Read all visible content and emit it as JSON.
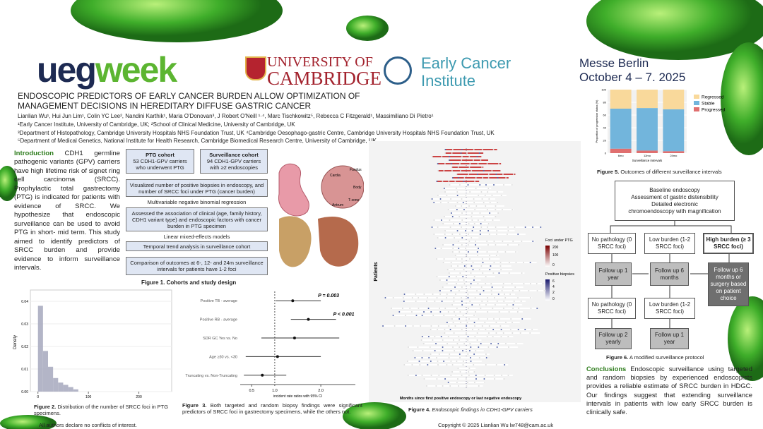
{
  "header": {
    "logo_left": "ueg",
    "logo_right": "week",
    "university_line1": "UNIVERSITY OF",
    "university_line2": "CAMBRIDGE",
    "institute_line1": "Early Cancer",
    "institute_line2": "Institute",
    "venue": "Messe Berlin",
    "dates": "October 4 – 7. 2025"
  },
  "title": "ENDOSCOPIC PREDICTORS OF EARLY CANCER BURDEN ALLOW OPTIMIZATION OF MANAGEMENT DECISIONS IN HEREDITARY DIFFUSE GASTRIC CANCER",
  "authors": "Lianlian Wu¹, Hui Jun Lim¹, Colin YC Lee², Nandini Karthik¹, Maria O'Donovan³, J Robert O'Neill ¹·⁴, Marc Tischkowitz⁵, Rebecca C Fitzgerald¹, Massimiliano Di Pietro¹",
  "affiliations": [
    "¹Early Cancer Institute, University of Cambridge, UK; ²School of Clinical Medicine, University of Cambridge, UK",
    "³Department of Histopathology, Cambridge University Hospitals NHS Foundation Trust, UK   ⁴Cambridge Oesophago-gastric Centre, Cambridge University Hospitals NHS Foundation Trust, UK",
    "⁵Department of Medical Genetics, National Institute for Health Research, Cambridge Biomedical Research Centre, University of Cambridge, UK."
  ],
  "introduction": {
    "heading": "Introduction",
    "text": "CDH1 germline pathogenic variants (GPV) carriers have high lifetime risk of signet ring cell carcinoma (SRCC). Prophylactic total gastrectomy (PTG) is indicated for patients with evidence of SRCC. We hypothesize that endoscopic surveillance can be used to avoid PTG in short- mid term. This study aimed to identify predictors of SRCC burden and provide evidence to inform surveillance intervals."
  },
  "figure1": {
    "cohorts": [
      {
        "title": "PTG cohort",
        "text": "53 CDH1-GPV carriers who underwent PTG"
      },
      {
        "title": "Surveillance cohort",
        "text": "94 CDH1-GPV carriers with ≥2 endoscopies"
      }
    ],
    "steps": [
      "Visualized number of positive biopsies in endoscopy, and number of SRCC foci under PTG (cancer burden)",
      "Multivariable negative binomial regression",
      "Assessed the association of clinical (age, family history, CDH1 variant type) and endoscopic factors with cancer burden in PTG specimen",
      "Linear mixed-effects models",
      "Temporal trend analysis in surveillance cohort",
      "Comparison of outcomes at 6-, 12- and 24m surveillance intervals for patients have 1-2 foci"
    ],
    "stomach_labels": [
      "Cardia",
      "Fundus",
      "Body",
      "Antrum",
      "T-zone"
    ],
    "caption": "Figure 1. Cohorts and study design"
  },
  "chart_data": [
    {
      "type": "histogram",
      "ylabel": "Density",
      "bins": [
        0,
        10,
        20,
        30,
        40,
        50,
        60,
        70,
        80
      ],
      "values": [
        0.038,
        0.018,
        0.011,
        0.006,
        0.004,
        0.003,
        0.002,
        0.001
      ],
      "color": "#a6a8bd",
      "xlim": [
        -15,
        265
      ],
      "ylim": [
        0,
        0.045
      ],
      "xticks": [
        0,
        100,
        200
      ],
      "yticks": [
        {
          "value": 0,
          "label": "0.00"
        },
        {
          "value": 0.01,
          "label": "0.01"
        },
        {
          "value": 0.02,
          "label": "0.02"
        },
        {
          "value": 0.03,
          "label": "0.03"
        },
        {
          "value": 0.04,
          "label": "0.04"
        }
      ]
    },
    {
      "type": "forest",
      "xlabel": "incident rate ratios with 95% CI",
      "xlim": [
        0.25,
        2.75
      ],
      "xticks": [
        0.5,
        {
          "value": 1,
          "label": "1.0"
        },
        {
          "value": 2,
          "label": "2.0"
        }
      ],
      "rows": [
        {
          "label": "Positive TB - average",
          "estimate": 1.39,
          "lower": 1.02,
          "upper": 2.0,
          "annotation": "P = 0.003"
        },
        {
          "label": "Positive RB - average",
          "estimate": 1.73,
          "lower": 1.35,
          "upper": 2.33,
          "annotation": "P < 0.001"
        },
        {
          "label": "SDR GC Yes vs. No",
          "estimate": 1.43,
          "lower": 0.71,
          "upper": 2.4
        },
        {
          "label": "Age ≥30 vs. <30",
          "estimate": 1.06,
          "lower": 0.37,
          "upper": 2.0
        },
        {
          "label": "Truncating vs. Non-Truncating",
          "estimate": 0.73,
          "lower": 0.33,
          "upper": 1.25
        }
      ]
    },
    {
      "type": "stacked_bar",
      "ylabel": "Proportion of progression status (%)",
      "xlabel": "Surveillance intervals",
      "categories": [
        "6mo",
        "12mo",
        "24mo"
      ],
      "ylim": [
        0,
        100
      ],
      "yticks": [
        0,
        20,
        40,
        60,
        80,
        100
      ],
      "series": [
        {
          "name": "Regressed",
          "color": "#f9d99b",
          "values": [
            30,
            29,
            31
          ]
        },
        {
          "name": "Stable",
          "color": "#72b5dc",
          "values": [
            63,
            67,
            66
          ]
        },
        {
          "name": "Progressed",
          "color": "#e06f6f",
          "values": [
            7,
            4,
            3
          ]
        }
      ]
    }
  ],
  "figure2": {
    "label": "Figure 2.",
    "text": "Distribution of the number of SRCC foci in PTG specimens."
  },
  "figure3": {
    "label": "Figure 3.",
    "text": "Both targeted and random biopsy findings were significant predictors of SRCC foci in gastrectomy specimens, while the others not."
  },
  "figure4": {
    "ylabel": "Patients",
    "xlabel": "Months since first positive endoscopy or last negative endoscopy",
    "legend1_title": "Foci under PTG",
    "legend1_ticks": [
      "200",
      "100",
      "0"
    ],
    "legend2_title": "Positive biopsies",
    "legend2_ticks": [
      "6",
      "4",
      "2",
      "0"
    ],
    "label": "Figure 4.",
    "text": "Endoscopic findings in CDH1-GPV carriers"
  },
  "figure5": {
    "label": "Figure 5.",
    "text": "Outcomes of different surveillance intervals"
  },
  "figure6": {
    "top": [
      "Baseline endoscopy",
      "Assessment of gastric distensibility",
      "Detailed electronic",
      "chromoendoscopy with magnification"
    ],
    "row2": [
      "No pathology (0 SRCC foci)",
      "Low burden (1-2 SRCC foci)",
      "High burden (≥ 3 SRCC foci)"
    ],
    "row3": [
      "Follow up 1 year",
      "Follow up 6 months",
      "Follow up 6 months or surgery based on patient choice"
    ],
    "row4": [
      "No pathology (0 SRCC foci)",
      "Low burden (1-2 SRCC foci)"
    ],
    "row5": [
      "Follow up 2 yearly",
      "Follow up 1 year"
    ],
    "label": "Figure 6.",
    "text": "A modified surveillance protocol"
  },
  "conclusions": {
    "heading": "Conclusions",
    "text": "Endoscopic surveillance using targeted and random biopsies by experienced endoscopists provides a reliable estimate of SRCC burden in HDGC. Our findings suggest that extending surveillance intervals in patients with low early SRCC burden is clinically safe."
  },
  "footer": {
    "conflicts": "All authors declare no conflicts of interest.",
    "copyright": "Copyright © 2025 Lianlian Wu lw748@cam.ac.uk"
  }
}
